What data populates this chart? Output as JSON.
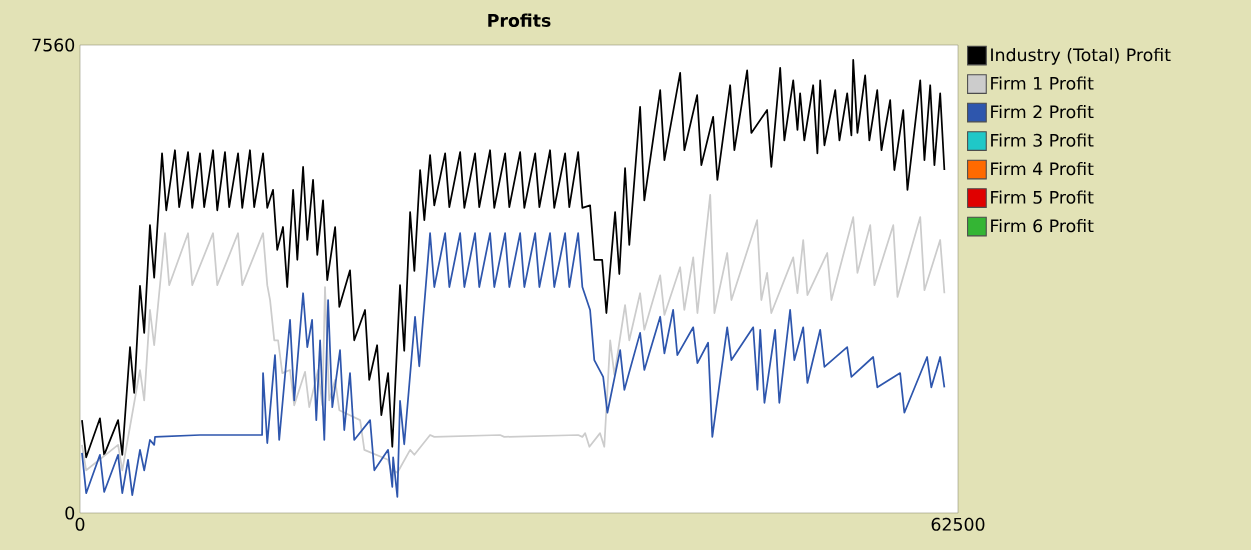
{
  "chart_data": {
    "type": "line",
    "title": "Profits",
    "xlim": [
      0,
      62500
    ],
    "ylim": [
      0,
      7560
    ],
    "xticks": [
      0,
      62500
    ],
    "yticks": [
      0,
      7560
    ],
    "legend": "right",
    "series": [
      {
        "name": "Industry (Total) Profit",
        "color": "#000000",
        "x": [
          140,
          440,
          1420,
          1720,
          2710,
          3010,
          3560,
          3860,
          4270,
          4570,
          4980,
          5280,
          5840,
          6140,
          6760,
          7060,
          7690,
          7990,
          8540,
          8840,
          9470,
          9770,
          10320,
          10620,
          11250,
          11550,
          12100,
          12400,
          13030,
          13330,
          13740,
          14040,
          14450,
          14750,
          15170,
          15470,
          15880,
          16180,
          16590,
          16890,
          17300,
          17600,
          18160,
          18460,
          19220,
          19520,
          20290,
          20590,
          21150,
          21450,
          21930,
          22230,
          22780,
          23080,
          23500,
          23800,
          24210,
          24510,
          24920,
          25220,
          25990,
          26290,
          27060,
          27360,
          28120,
          28420,
          29190,
          29490,
          30260,
          30560,
          31330,
          31630,
          32400,
          32700,
          33460,
          33760,
          34530,
          34830,
          35460,
          35760,
          36310,
          36610,
          37170,
          37470,
          38090,
          38390,
          38800,
          39100,
          39870,
          40170,
          41300,
          41600,
          42720,
          43020,
          43930,
          44230,
          45070,
          45370,
          46280,
          46580,
          47490,
          47790,
          48910,
          49210,
          49840,
          50140,
          50770,
          51070,
          51260,
          51560,
          52190,
          52490,
          52690,
          52990,
          53760,
          54060,
          54610,
          54910,
          55040,
          55340,
          55890,
          56190,
          56750,
          57050,
          57670,
          57970,
          58600,
          58900,
          59810,
          60110,
          60520,
          60820,
          61230,
          61530
        ],
        "values": [
          1500,
          900,
          1530,
          940,
          1500,
          940,
          2680,
          1940,
          3670,
          2910,
          4650,
          3800,
          5810,
          4890,
          5860,
          4940,
          5830,
          4930,
          5810,
          4940,
          5860,
          4890,
          5830,
          4940,
          5810,
          4930,
          5860,
          4940,
          5810,
          4930,
          5220,
          4250,
          4620,
          3650,
          5220,
          4090,
          5590,
          4410,
          5380,
          4170,
          5050,
          3760,
          4620,
          3330,
          3920,
          2790,
          3280,
          2150,
          2710,
          1580,
          2260,
          1070,
          3680,
          2620,
          4860,
          3910,
          5540,
          4730,
          5780,
          4970,
          5810,
          4940,
          5830,
          4930,
          5810,
          4940,
          5860,
          4930,
          5810,
          4940,
          5830,
          4930,
          5810,
          4940,
          5860,
          4930,
          5810,
          4940,
          5830,
          4930,
          4970,
          4090,
          4090,
          3230,
          4860,
          3860,
          5570,
          4330,
          6560,
          5050,
          6830,
          5700,
          7110,
          5860,
          6750,
          5620,
          6400,
          5380,
          6910,
          5860,
          7150,
          6140,
          6510,
          5590,
          7190,
          6020,
          6990,
          6190,
          6780,
          6020,
          6910,
          5810,
          6990,
          5940,
          6830,
          6020,
          6780,
          6100,
          7320,
          6140,
          7070,
          6020,
          6830,
          5860,
          6670,
          5540,
          6510,
          5220,
          6990,
          5700,
          6910,
          5620,
          6780,
          5540
        ]
      },
      {
        "name": "Firm 1 Profit",
        "color": "#cccccc",
        "x": [
          140,
          440,
          2710,
          3010,
          4270,
          4570,
          4980,
          5280,
          6050,
          6350,
          7690,
          7990,
          9470,
          9770,
          11250,
          11550,
          13030,
          13330,
          13530,
          13830,
          14100,
          14400,
          14950,
          15250,
          16020,
          16320,
          16950,
          17250,
          17440,
          17740,
          18160,
          18460,
          19940,
          20240,
          21930,
          22230,
          22290,
          22590,
          23500,
          23800,
          24920,
          25220,
          29900,
          30200,
          35460,
          35760,
          35960,
          36260,
          37020,
          37320,
          37740,
          38040,
          38800,
          39100,
          39870,
          40170,
          41300,
          41600,
          42720,
          43020,
          43650,
          43950,
          44860,
          45160,
          46070,
          46370,
          48200,
          48500,
          48910,
          49210,
          50770,
          51070,
          51480,
          51780,
          53190,
          53490,
          55040,
          55340,
          56250,
          56550,
          57890,
          58190,
          59810,
          60110,
          61230,
          61530
        ],
        "values": [
          1100,
          690,
          1100,
          690,
          2310,
          1820,
          3280,
          2710,
          4520,
          3680,
          4520,
          3680,
          4520,
          3680,
          4520,
          3680,
          4520,
          3680,
          3440,
          2790,
          2790,
          2260,
          2310,
          1740,
          2280,
          1710,
          2310,
          1740,
          3650,
          1820,
          2150,
          1660,
          1500,
          1020,
          860,
          610,
          690,
          650,
          1020,
          940,
          1260,
          1230,
          1260,
          1230,
          1260,
          1230,
          1290,
          1070,
          1290,
          1070,
          2790,
          2230,
          3360,
          2790,
          3550,
          2960,
          3840,
          3200,
          3970,
          3280,
          4130,
          3230,
          5140,
          3230,
          4200,
          3440,
          4730,
          3440,
          3880,
          3230,
          4130,
          3550,
          4410,
          3520,
          4200,
          3440,
          4780,
          3880,
          4650,
          3680,
          4650,
          3490,
          4780,
          3600,
          4410,
          3550
        ]
      },
      {
        "name": "Firm 2 Profit",
        "color": "#2e56ad",
        "x": [
          140,
          440,
          1420,
          1720,
          2710,
          3010,
          3420,
          3720,
          4270,
          4570,
          4980,
          5280,
          5340,
          8540,
          12960,
          13030,
          13330,
          13880,
          14180,
          14950,
          15250,
          15880,
          16180,
          16520,
          16820,
          17090,
          17390,
          17660,
          17960,
          18510,
          18810,
          19220,
          19520,
          20650,
          20950,
          21930,
          22230,
          22290,
          22590,
          22780,
          23080,
          23850,
          24150,
          24920,
          25220,
          25990,
          26290,
          27060,
          27360,
          28120,
          28420,
          29190,
          29490,
          30260,
          30560,
          31330,
          31630,
          32400,
          32700,
          33460,
          33760,
          34530,
          34830,
          35460,
          35760,
          36310,
          36610,
          37240,
          37540,
          38450,
          38750,
          39870,
          40170,
          41300,
          41600,
          42220,
          42520,
          43650,
          43950,
          44710,
          45010,
          46070,
          46370,
          47920,
          48220,
          48420,
          48720,
          49480,
          49780,
          50550,
          50850,
          51480,
          51780,
          52690,
          52990,
          54610,
          54910,
          56460,
          56760,
          58380,
          58680,
          60300,
          60600,
          61230,
          61530
        ],
        "values": [
          970,
          320,
          940,
          340,
          940,
          320,
          860,
          290,
          1020,
          690,
          1180,
          1100,
          1230,
          1260,
          1260,
          2260,
          1130,
          2550,
          1180,
          3120,
          1820,
          3550,
          2680,
          3120,
          1500,
          2790,
          1180,
          3440,
          1710,
          2630,
          1340,
          2260,
          1180,
          1500,
          690,
          1020,
          420,
          900,
          260,
          1810,
          1110,
          3170,
          2370,
          4520,
          3650,
          4520,
          3650,
          4520,
          3650,
          4520,
          3650,
          4520,
          3650,
          4520,
          3650,
          4520,
          3650,
          4520,
          3650,
          4520,
          3650,
          4520,
          3650,
          4520,
          3650,
          3280,
          2470,
          2200,
          1620,
          2630,
          1990,
          2910,
          2310,
          3170,
          2580,
          3280,
          2550,
          3000,
          2420,
          2750,
          1230,
          3000,
          2470,
          3000,
          1990,
          2960,
          1780,
          2960,
          1780,
          3280,
          2470,
          3000,
          2100,
          2960,
          2360,
          2680,
          2200,
          2520,
          2030,
          2260,
          1620,
          2520,
          2030,
          2520,
          2030
        ]
      },
      {
        "name": "Firm 3 Profit",
        "color": "#1fc8c8"
      },
      {
        "name": "Firm 4 Profit",
        "color": "#ff6a00"
      },
      {
        "name": "Firm 5 Profit",
        "color": "#e00000"
      },
      {
        "name": "Firm 6 Profit",
        "color": "#34b534"
      }
    ]
  }
}
